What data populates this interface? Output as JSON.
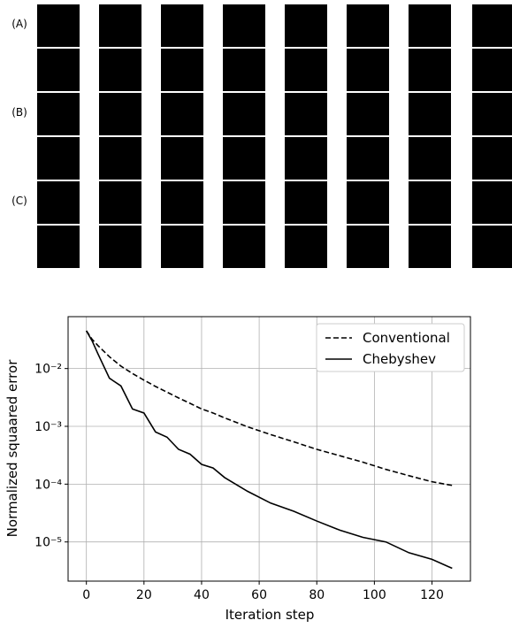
{
  "panel_labels": [
    "(A)",
    "(B)",
    "(C)"
  ],
  "chart_data": {
    "type": "line",
    "xlabel": "Iteration step",
    "ylabel": "Normalized squaared error",
    "x": [
      0,
      2,
      4,
      8,
      12,
      16,
      20,
      24,
      28,
      32,
      36,
      40,
      44,
      48,
      56,
      64,
      72,
      80,
      88,
      96,
      104,
      112,
      120,
      127
    ],
    "series": [
      {
        "name": "Conventional",
        "color": "#000000",
        "linestyle": "dashed",
        "values": [
          0.045,
          0.032,
          0.025,
          0.016,
          0.011,
          0.0082,
          0.0063,
          0.0049,
          0.0039,
          0.0031,
          0.0025,
          0.002,
          0.0017,
          0.0014,
          0.00098,
          0.00072,
          0.00054,
          0.0004,
          0.00031,
          0.00024,
          0.00018,
          0.00014,
          0.00011,
          9.5e-05
        ]
      },
      {
        "name": "Chebyshev",
        "color": "#000000",
        "linestyle": "solid",
        "values": [
          0.045,
          0.03,
          0.018,
          0.0068,
          0.005,
          0.002,
          0.0017,
          0.0008,
          0.00065,
          0.0004,
          0.00033,
          0.00022,
          0.00019,
          0.00013,
          7.5e-05,
          4.7e-05,
          3.4e-05,
          2.3e-05,
          1.6e-05,
          1.2e-05,
          1e-05,
          6.5e-06,
          5e-06,
          3.5e-06
        ]
      }
    ],
    "xlim": [
      -6.35,
      133.35
    ],
    "xticks": [
      0,
      20,
      40,
      60,
      80,
      100,
      120
    ],
    "ylim": [
      2.1e-06,
      0.079
    ],
    "log_y": true,
    "yticks": [
      {
        "value": 1e-05,
        "label": "10⁻⁵"
      },
      {
        "value": 0.0001,
        "label": "10⁻⁴"
      },
      {
        "value": 0.001,
        "label": "10⁻³"
      },
      {
        "value": 0.01,
        "label": "10⁻²"
      }
    ],
    "grid": true,
    "legend": "upper right"
  }
}
